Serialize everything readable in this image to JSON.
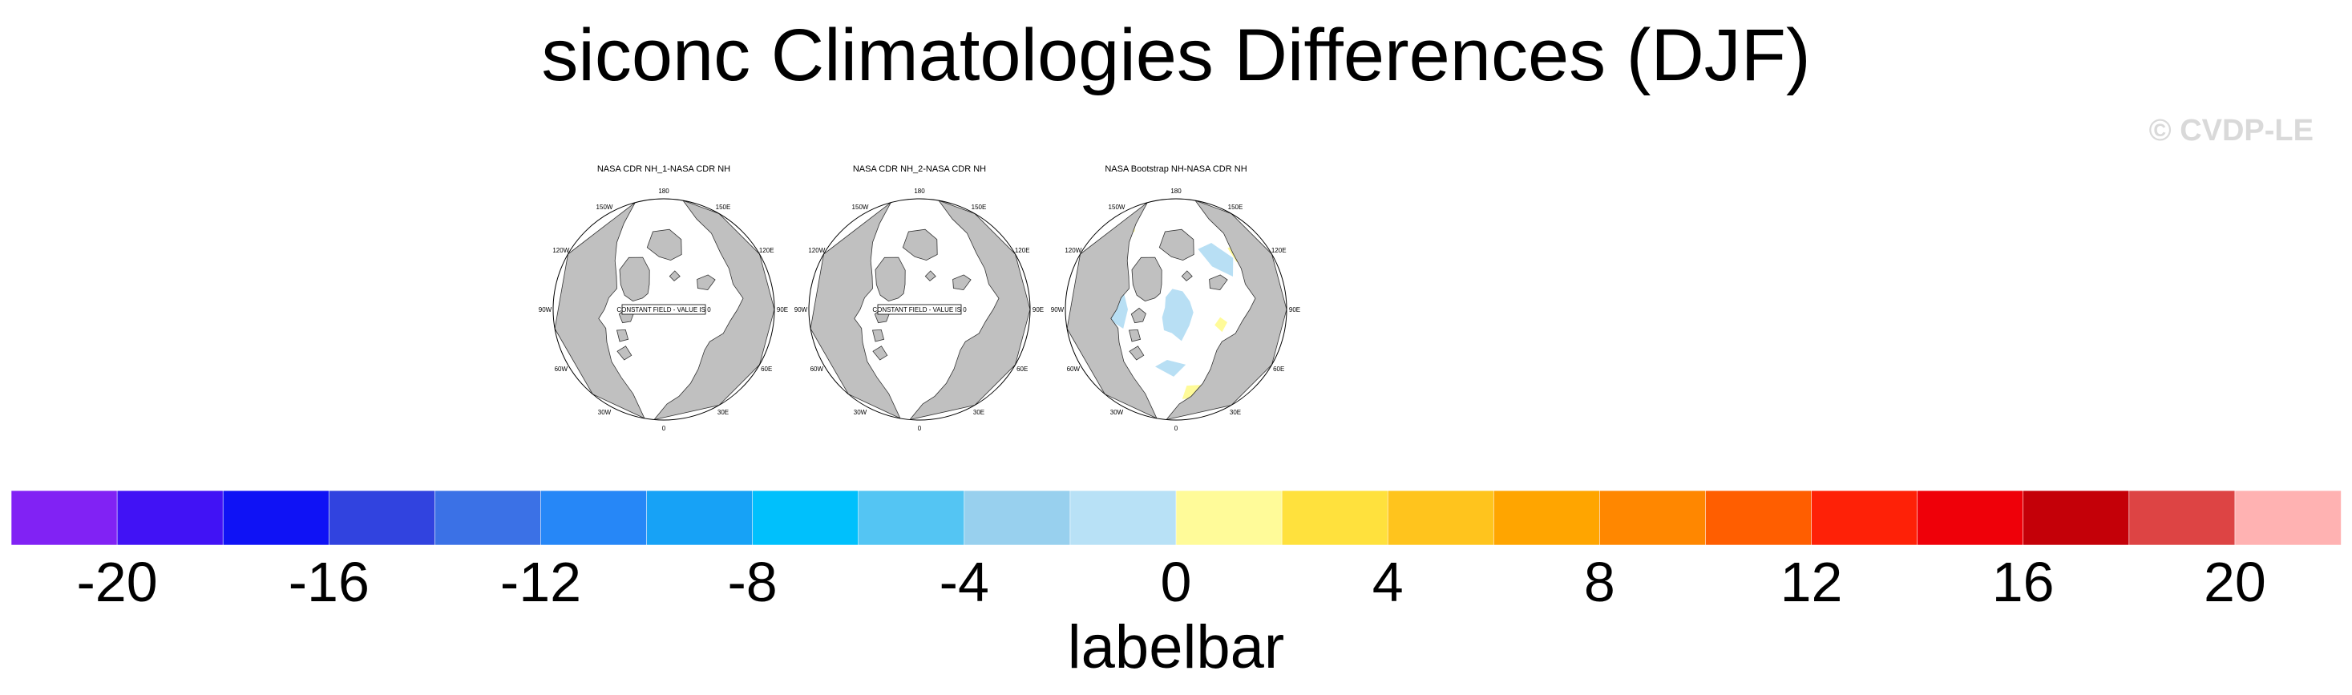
{
  "title": "siconc Climatologies Differences (DJF)",
  "watermark": "© CVDP-LE",
  "panels": [
    {
      "title": "NASA CDR NH_1-NASA CDR NH",
      "constant_label": "CONSTANT FIELD - VALUE IS 0",
      "style": "constant"
    },
    {
      "title": "NASA CDR NH_2-NASA CDR NH",
      "constant_label": "CONSTANT FIELD - VALUE IS 0",
      "style": "constant"
    },
    {
      "title": "NASA Bootstrap NH-NASA CDR NH",
      "constant_label": "",
      "style": "diff"
    }
  ],
  "longitude_labels": [
    "180",
    "150E",
    "120E",
    "90E",
    "60E",
    "30E",
    "0",
    "30W",
    "60W",
    "90W",
    "120W",
    "150W"
  ],
  "colors": {
    "land": "#c0c0c0",
    "ocean": "#ffffff",
    "diff_negative": "#b8dff4",
    "diff_positive": "#fffb99"
  },
  "chart_data": {
    "type": "heatmap",
    "colorbar": {
      "title": "labelbar",
      "levels": [
        -20,
        -18,
        -16,
        -14,
        -12,
        -10,
        -8,
        -6,
        -4,
        -2,
        0,
        2,
        4,
        6,
        8,
        10,
        12,
        14,
        16,
        18,
        20
      ],
      "tick_labels": [
        "-20",
        "-16",
        "-12",
        "-8",
        "-4",
        "0",
        "4",
        "8",
        "12",
        "16",
        "20"
      ],
      "tick_values": [
        -20,
        -16,
        -12,
        -8,
        -4,
        0,
        4,
        8,
        12,
        16,
        20
      ],
      "colors": [
        "#8122f4",
        "#4112f5",
        "#0f12f5",
        "#3143df",
        "#3b71e6",
        "#2687f7",
        "#17a2f6",
        "#00c0fc",
        "#54c5f3",
        "#98d0ee",
        "#b8e1f6",
        "#fffb99",
        "#ffe13d",
        "#ffc41d",
        "#ffa500",
        "#ff8700",
        "#ff5e00",
        "#fe2107",
        "#ef0009",
        "#c40008",
        "#dd4444",
        "#ffb2b2"
      ]
    }
  }
}
